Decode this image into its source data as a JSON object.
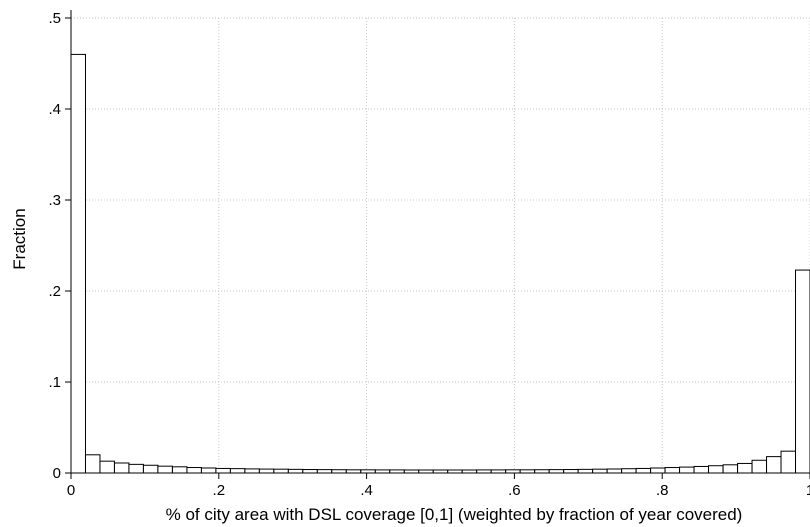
{
  "chart_data": {
    "type": "bar",
    "title": "",
    "xlabel": "% of city area with DSL coverage [0,1] (weighted by fraction of year covered)",
    "ylabel": "Fraction",
    "xlim": [
      0,
      1
    ],
    "ylim": [
      0,
      0.5
    ],
    "x_ticks": [
      0,
      0.2,
      0.4,
      0.6,
      0.8,
      1
    ],
    "x_tick_labels": [
      "0",
      ".2",
      ".4",
      ".6",
      ".8",
      "1"
    ],
    "y_ticks": [
      0,
      0.1,
      0.2,
      0.3,
      0.4,
      0.5
    ],
    "y_tick_labels": [
      "0",
      ".1",
      ".2",
      ".3",
      ".4",
      ".5"
    ],
    "grid": true,
    "bin_width": 0.0196,
    "bin_starts": [
      0,
      0.0196,
      0.0392,
      0.0588,
      0.0784,
      0.098,
      0.1176,
      0.1373,
      0.1569,
      0.1765,
      0.1961,
      0.2157,
      0.2353,
      0.2549,
      0.2745,
      0.2941,
      0.3137,
      0.3333,
      0.3529,
      0.3725,
      0.3922,
      0.4118,
      0.4314,
      0.451,
      0.4706,
      0.4902,
      0.5098,
      0.5294,
      0.549,
      0.5686,
      0.5882,
      0.6078,
      0.6275,
      0.6471,
      0.6667,
      0.6863,
      0.7059,
      0.7255,
      0.7451,
      0.7647,
      0.7843,
      0.8039,
      0.8235,
      0.8431,
      0.8627,
      0.8824,
      0.902,
      0.9216,
      0.9412,
      0.9608,
      0.9804
    ],
    "values": [
      0.46,
      0.02,
      0.013,
      0.011,
      0.0095,
      0.0085,
      0.0075,
      0.0068,
      0.006,
      0.0055,
      0.005,
      0.0048,
      0.0045,
      0.0043,
      0.0042,
      0.004,
      0.0038,
      0.0037,
      0.0036,
      0.0035,
      0.0035,
      0.0034,
      0.0034,
      0.0033,
      0.0033,
      0.0033,
      0.0033,
      0.0033,
      0.0034,
      0.0034,
      0.0035,
      0.0035,
      0.0036,
      0.0037,
      0.0038,
      0.004,
      0.0042,
      0.0044,
      0.0047,
      0.005,
      0.0055,
      0.006,
      0.0065,
      0.0072,
      0.008,
      0.009,
      0.0105,
      0.014,
      0.018,
      0.024,
      0.223
    ]
  }
}
